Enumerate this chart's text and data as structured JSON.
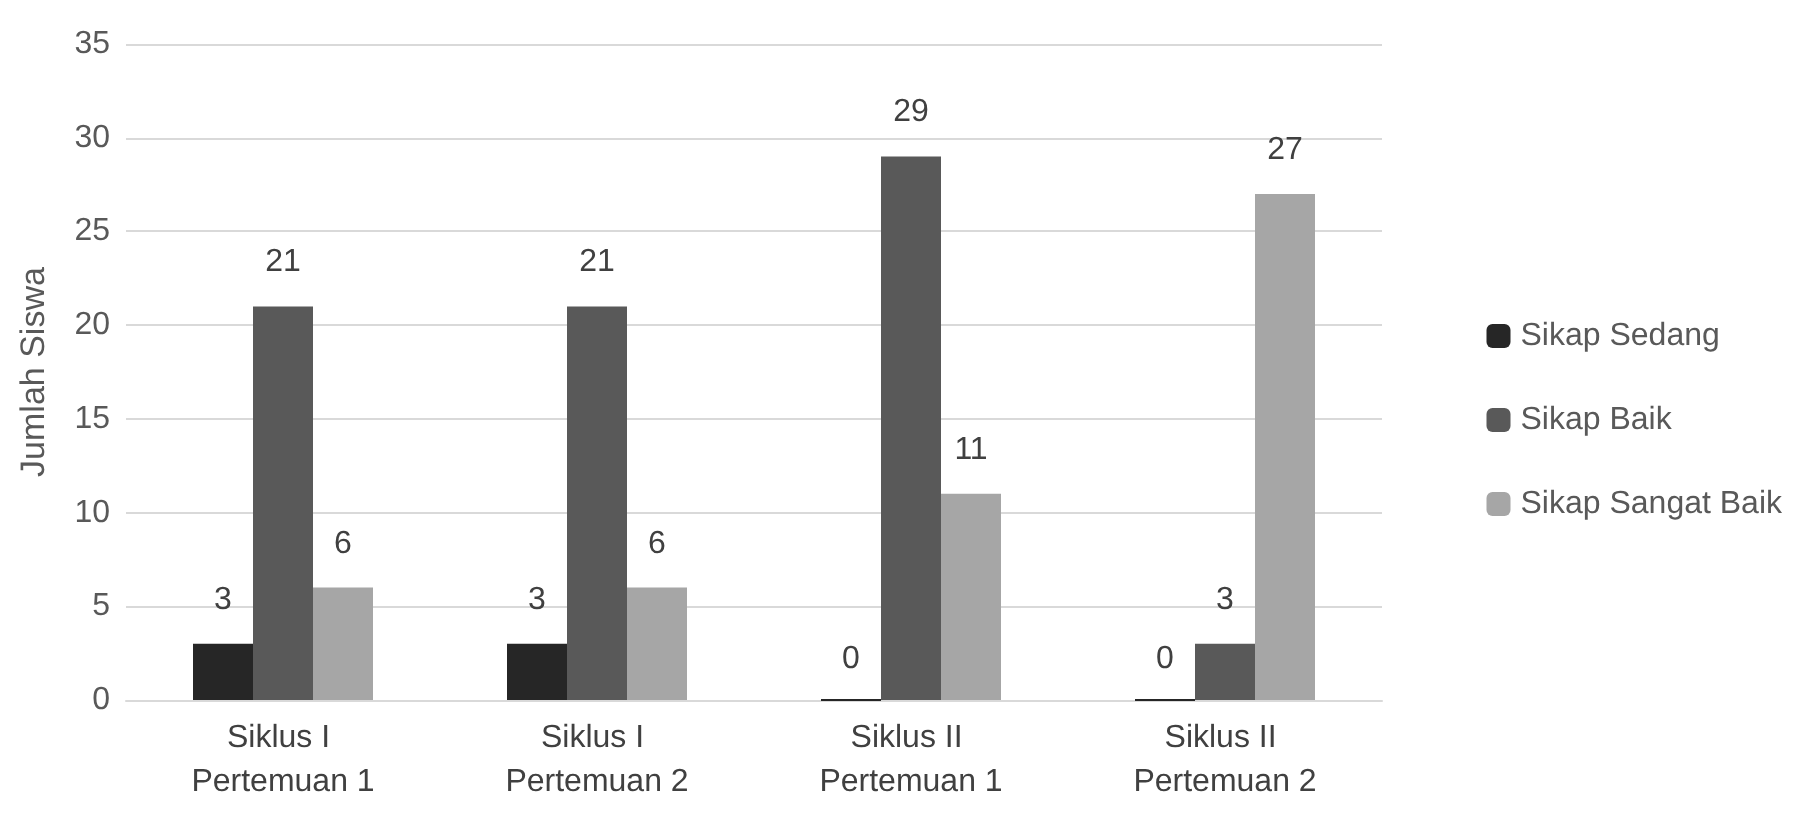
{
  "chart_data": {
    "type": "bar",
    "ylabel": "Jumlah Siswa",
    "categories": [
      "Siklus I Pertemuan 1",
      "Siklus I Pertemuan 2",
      "Siklus II Pertemuan 1",
      "Siklus II Pertemuan 2"
    ],
    "series": [
      {
        "name": "Sikap Sedang",
        "color": "#262626",
        "values": [
          3,
          3,
          0,
          0
        ]
      },
      {
        "name": "Sikap Baik",
        "color": "#595959",
        "values": [
          21,
          21,
          29,
          3
        ]
      },
      {
        "name": "Sikap Sangat Baik",
        "color": "#a6a6a6",
        "values": [
          6,
          6,
          11,
          27
        ]
      }
    ],
    "ylim": [
      0,
      35
    ],
    "yticks": [
      0,
      5,
      10,
      15,
      20,
      25,
      30,
      35
    ],
    "grid": "y",
    "legend": "right",
    "data_labels": true
  }
}
